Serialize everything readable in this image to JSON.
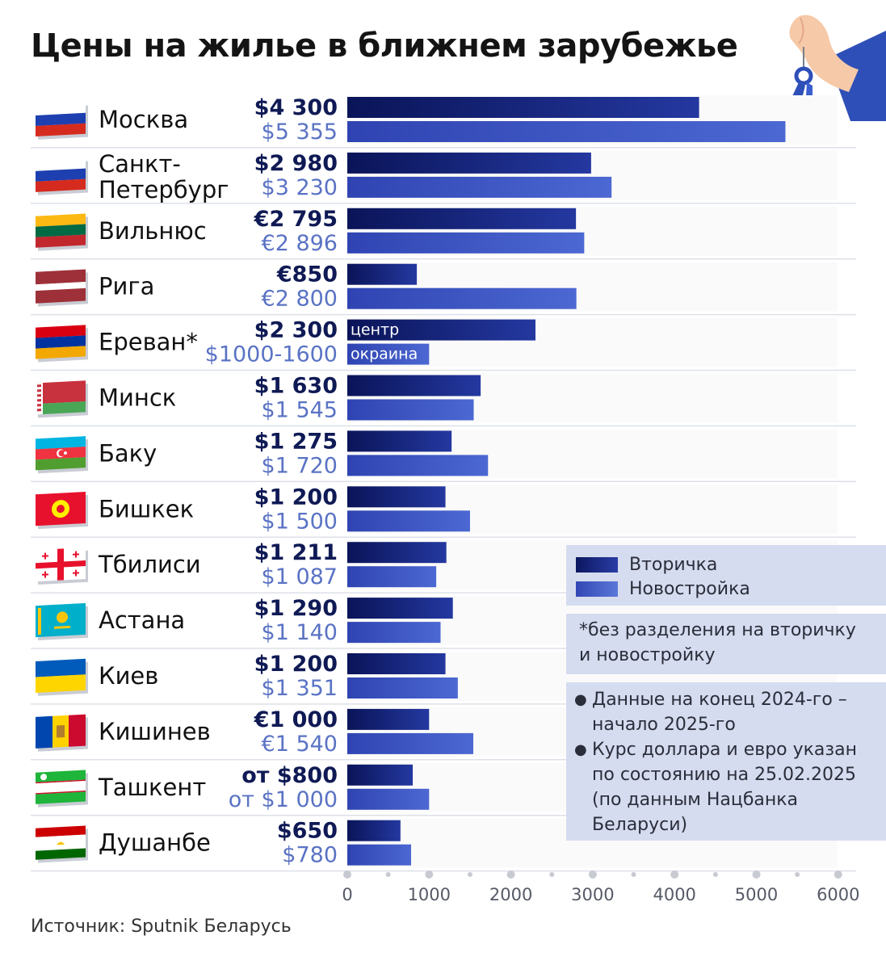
{
  "title": "Цены на жилье в ближнем зарубежье",
  "source": "Источник: Sputnik Беларусь",
  "legend": {
    "secondary": "Вторичка",
    "new": "Новостройка"
  },
  "footnote": "*без разделения на вторичку и новостройку",
  "notes": [
    "Данные на конец 2024-го – начало 2025-го",
    "Курс доллара и евро указан по состоянию на 25.02.2025 (по данным Нацбанка Беларуси)"
  ],
  "colors": {
    "secondary_bar": "#0c1760",
    "new_bar": "#3f56c2",
    "secondary_text": "#0f1a55",
    "new_text": "#5a73c4",
    "info_box": "#d6dcef"
  },
  "chart_data": {
    "type": "bar",
    "orientation": "horizontal",
    "x_ticks": [
      "0",
      "1000",
      "2000",
      "3000",
      "4000",
      "5000",
      "6000"
    ],
    "xlim": [
      0,
      6000
    ],
    "grid": false,
    "legend_placement": "right",
    "categories": [
      "Москва",
      "Санкт-Петербург",
      "Вильнюс",
      "Рига",
      "Ереван*",
      "Минск",
      "Баку",
      "Бишкек",
      "Тбилиси",
      "Астана",
      "Киев",
      "Кишинев",
      "Ташкент",
      "Душанбе"
    ],
    "category_lines": [
      [
        "Москва"
      ],
      [
        "Санкт-",
        "Петербург"
      ],
      [
        "Вильнюс"
      ],
      [
        "Рига"
      ],
      [
        "Ереван*"
      ],
      [
        "Минск"
      ],
      [
        "Баку"
      ],
      [
        "Бишкек"
      ],
      [
        "Тбилиси"
      ],
      [
        "Астана"
      ],
      [
        "Киев"
      ],
      [
        "Кишинев"
      ],
      [
        "Ташкент"
      ],
      [
        "Душанбе"
      ]
    ],
    "flags": [
      "russia-flag-icon",
      "russia-flag-icon",
      "lithuania-flag-icon",
      "latvia-flag-icon",
      "armenia-flag-icon",
      "belarus-flag-icon",
      "azerbaijan-flag-icon",
      "kyrgyzstan-flag-icon",
      "georgia-flag-icon",
      "kazakhstan-flag-icon",
      "ukraine-flag-icon",
      "moldova-flag-icon",
      "uzbekistan-flag-icon",
      "tajikistan-flag-icon"
    ],
    "series": [
      {
        "name": "Вторичка",
        "values": [
          4300,
          2980,
          2795,
          850,
          2300,
          1630,
          1275,
          1200,
          1211,
          1290,
          1200,
          1000,
          800,
          650
        ],
        "labels": [
          "$4 300",
          "$2 980",
          "€2 795",
          "€850",
          "$2 300",
          "$1 630",
          "$1 275",
          "$1 200",
          "$1 211",
          "$1 290",
          "$1 200",
          "€1 000",
          "от $800",
          "$650"
        ],
        "bar_notes": [
          "",
          "",
          "",
          "",
          "центр",
          "",
          "",
          "",
          "",
          "",
          "",
          "",
          "",
          ""
        ]
      },
      {
        "name": "Новостройка",
        "values": [
          5355,
          3230,
          2896,
          2800,
          1000,
          1545,
          1720,
          1500,
          1087,
          1140,
          1351,
          1540,
          1000,
          780
        ],
        "labels": [
          "$5 355",
          "$3 230",
          "€2 896",
          "€2 800",
          "$1000-1600",
          "$1 545",
          "$1 720",
          "$1 500",
          "$1 087",
          "$1 140",
          "$1 351",
          "€1 540",
          "от $1 000",
          "$780"
        ],
        "bar_notes": [
          "",
          "",
          "",
          "",
          "окраина",
          "",
          "",
          "",
          "",
          "",
          "",
          "",
          "",
          ""
        ]
      }
    ]
  }
}
